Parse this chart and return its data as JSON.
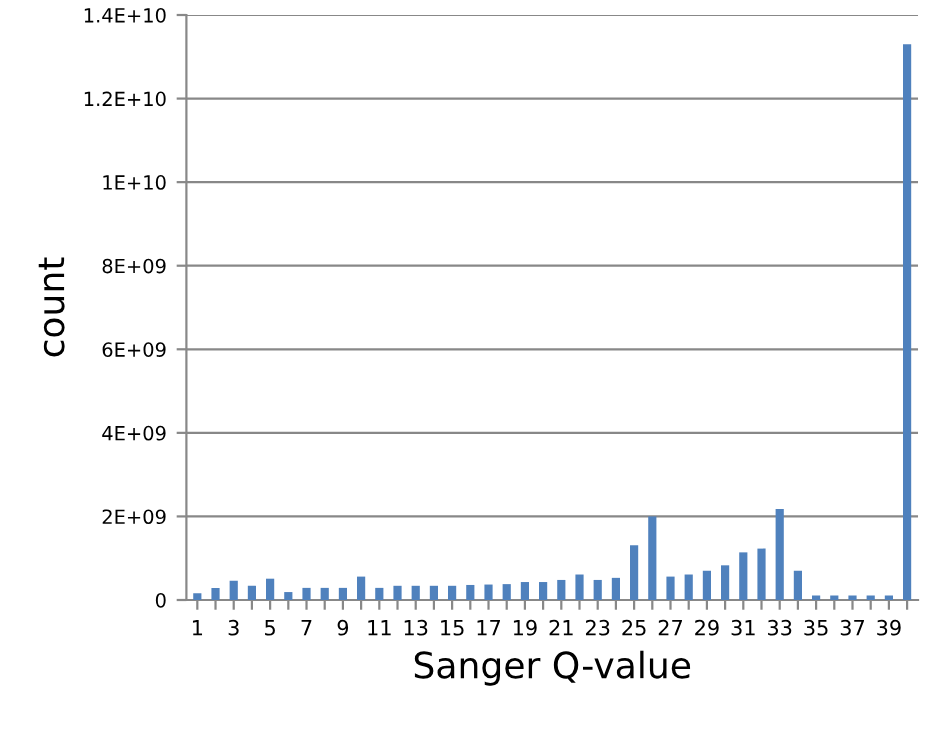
{
  "chart_data": {
    "type": "bar",
    "xlabel": "Sanger Q-value",
    "ylabel": "count",
    "categories": [
      "1",
      null,
      "3",
      null,
      "5",
      null,
      "7",
      null,
      "9",
      null,
      "11",
      null,
      "13",
      null,
      "15",
      null,
      "17",
      null,
      "19",
      null,
      "21",
      null,
      "23",
      null,
      "25",
      null,
      "27",
      null,
      "29",
      null,
      "31",
      null,
      "33",
      null,
      "35",
      null,
      "37",
      null,
      "39",
      null
    ],
    "values": [
      160000000.0,
      290000000.0,
      460000000.0,
      340000000.0,
      510000000.0,
      190000000.0,
      290000000.0,
      290000000.0,
      290000000.0,
      560000000.0,
      290000000.0,
      340000000.0,
      340000000.0,
      340000000.0,
      340000000.0,
      360000000.0,
      370000000.0,
      380000000.0,
      430000000.0,
      430000000.0,
      480000000.0,
      610000000.0,
      480000000.0,
      530000000.0,
      1310000000.0,
      2000000000.0,
      560000000.0,
      610000000.0,
      700000000.0,
      830000000.0,
      1140000000.0,
      1230000000.0,
      2180000000.0,
      700000000.0,
      110000000.0,
      110000000.0,
      110000000.0,
      110000000.0,
      110000000.0,
      13300000000.0
    ],
    "color": "#4f81bd",
    "ylim": [
      0,
      14000000000.0
    ],
    "yticks": [
      0,
      {
        "value": 2000000000.0,
        "label": "2E+09"
      },
      {
        "value": 4000000000.0,
        "label": "4E+09"
      },
      {
        "value": 6000000000.0,
        "label": "6E+09"
      },
      {
        "value": 8000000000.0,
        "label": "8E+09"
      },
      {
        "value": 10000000000.0,
        "label": "1E+10"
      },
      {
        "value": 12000000000.0,
        "label": "1.2E+10"
      },
      {
        "value": 14000000000.0,
        "label": "1.4E+10"
      }
    ],
    "grid": "y",
    "legend": false
  }
}
